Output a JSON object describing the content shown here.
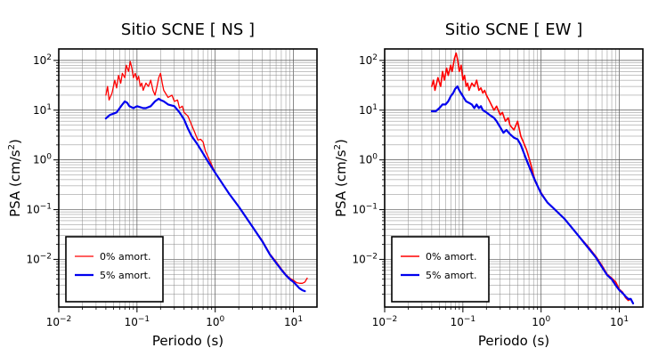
{
  "chart_data": [
    {
      "type": "line",
      "title": "Sitio SCNE [ NS ]",
      "xlabel": "Periodo (s)",
      "ylabel_main": "PSA (cm/s",
      "ylabel_sup": "2",
      "ylabel_close": ")",
      "xscale": "log",
      "yscale": "log",
      "xlim": [
        0.01,
        20
      ],
      "ylim": [
        0.0011,
        170
      ],
      "grid": true,
      "legend_position": "bottom-left",
      "x_ticks": [
        {
          "value": 0.01,
          "base": "10",
          "exp": "−2"
        },
        {
          "value": 0.1,
          "base": "10",
          "exp": "−1"
        },
        {
          "value": 1,
          "base": "10",
          "exp": "0"
        },
        {
          "value": 10,
          "base": "10",
          "exp": "1"
        }
      ],
      "y_ticks": [
        {
          "value": 0.01,
          "base": "10",
          "exp": "−2"
        },
        {
          "value": 0.1,
          "base": "10",
          "exp": "−1"
        },
        {
          "value": 1,
          "base": "10",
          "exp": "0"
        },
        {
          "value": 10,
          "base": "10",
          "exp": "1"
        },
        {
          "value": 100,
          "base": "10",
          "exp": "2"
        }
      ],
      "series": [
        {
          "name": "0% amort.",
          "color": "#ff0000",
          "width": 1.3,
          "points": [
            [
              0.04,
              20
            ],
            [
              0.042,
              30
            ],
            [
              0.044,
              16
            ],
            [
              0.048,
              22
            ],
            [
              0.052,
              40
            ],
            [
              0.055,
              28
            ],
            [
              0.058,
              50
            ],
            [
              0.062,
              35
            ],
            [
              0.065,
              55
            ],
            [
              0.07,
              45
            ],
            [
              0.073,
              80
            ],
            [
              0.078,
              60
            ],
            [
              0.082,
              95
            ],
            [
              0.086,
              70
            ],
            [
              0.09,
              45
            ],
            [
              0.095,
              55
            ],
            [
              0.1,
              40
            ],
            [
              0.105,
              48
            ],
            [
              0.11,
              30
            ],
            [
              0.115,
              35
            ],
            [
              0.12,
              25
            ],
            [
              0.13,
              35
            ],
            [
              0.14,
              30
            ],
            [
              0.15,
              40
            ],
            [
              0.16,
              25
            ],
            [
              0.17,
              20
            ],
            [
              0.18,
              30
            ],
            [
              0.19,
              45
            ],
            [
              0.2,
              55
            ],
            [
              0.21,
              35
            ],
            [
              0.22,
              25
            ],
            [
              0.25,
              18
            ],
            [
              0.28,
              20
            ],
            [
              0.3,
              15
            ],
            [
              0.33,
              16
            ],
            [
              0.35,
              11
            ],
            [
              0.38,
              12
            ],
            [
              0.4,
              9
            ],
            [
              0.45,
              7.5
            ],
            [
              0.5,
              5
            ],
            [
              0.55,
              3.5
            ],
            [
              0.6,
              2.5
            ],
            [
              0.65,
              2.6
            ],
            [
              0.7,
              2.3
            ],
            [
              0.75,
              1.5
            ],
            [
              0.8,
              1.2
            ],
            [
              1.0,
              0.55
            ],
            [
              1.5,
              0.21
            ],
            [
              2,
              0.115
            ],
            [
              3,
              0.045
            ],
            [
              4,
              0.024
            ],
            [
              5,
              0.013
            ],
            [
              6,
              0.009
            ],
            [
              7,
              0.0065
            ],
            [
              8,
              0.005
            ],
            [
              9,
              0.0042
            ],
            [
              10,
              0.0038
            ],
            [
              11,
              0.0034
            ],
            [
              12,
              0.0033
            ],
            [
              13,
              0.0033
            ],
            [
              14,
              0.0035
            ],
            [
              15,
              0.0042
            ]
          ]
        },
        {
          "name": "5% amort.",
          "color": "#0000ee",
          "width": 2.2,
          "points": [
            [
              0.04,
              6.8
            ],
            [
              0.045,
              8
            ],
            [
              0.05,
              8.5
            ],
            [
              0.055,
              9
            ],
            [
              0.06,
              11
            ],
            [
              0.065,
              13
            ],
            [
              0.07,
              15
            ],
            [
              0.075,
              14
            ],
            [
              0.08,
              12
            ],
            [
              0.09,
              11
            ],
            [
              0.1,
              12
            ],
            [
              0.11,
              11.5
            ],
            [
              0.12,
              11
            ],
            [
              0.13,
              11
            ],
            [
              0.15,
              12
            ],
            [
              0.17,
              15
            ],
            [
              0.19,
              17
            ],
            [
              0.2,
              16
            ],
            [
              0.22,
              15
            ],
            [
              0.25,
              13
            ],
            [
              0.3,
              12
            ],
            [
              0.35,
              9
            ],
            [
              0.4,
              6.5
            ],
            [
              0.45,
              4.2
            ],
            [
              0.5,
              3
            ],
            [
              0.6,
              2
            ],
            [
              0.7,
              1.35
            ],
            [
              0.8,
              0.95
            ],
            [
              1.0,
              0.55
            ],
            [
              1.5,
              0.21
            ],
            [
              2,
              0.115
            ],
            [
              3,
              0.045
            ],
            [
              4,
              0.023
            ],
            [
              5,
              0.0125
            ],
            [
              6,
              0.0085
            ],
            [
              7,
              0.0062
            ],
            [
              8,
              0.0048
            ],
            [
              9,
              0.004
            ],
            [
              10,
              0.0035
            ],
            [
              11,
              0.003
            ],
            [
              12,
              0.0026
            ],
            [
              13,
              0.0024
            ],
            [
              14,
              0.0023
            ]
          ]
        }
      ]
    },
    {
      "type": "line",
      "title": "Sitio SCNE [ EW ]",
      "xlabel": "Periodo (s)",
      "ylabel_main": "PSA (cm/s",
      "ylabel_sup": "2",
      "ylabel_close": ")",
      "xscale": "log",
      "yscale": "log",
      "xlim": [
        0.01,
        20
      ],
      "ylim": [
        0.0011,
        170
      ],
      "grid": true,
      "legend_position": "bottom-left",
      "x_ticks": [
        {
          "value": 0.01,
          "base": "10",
          "exp": "−2"
        },
        {
          "value": 0.1,
          "base": "10",
          "exp": "−1"
        },
        {
          "value": 1,
          "base": "10",
          "exp": "0"
        },
        {
          "value": 10,
          "base": "10",
          "exp": "1"
        }
      ],
      "y_ticks": [
        {
          "value": 0.01,
          "base": "10",
          "exp": "−2"
        },
        {
          "value": 0.1,
          "base": "10",
          "exp": "−1"
        },
        {
          "value": 1,
          "base": "10",
          "exp": "0"
        },
        {
          "value": 10,
          "base": "10",
          "exp": "1"
        },
        {
          "value": 100,
          "base": "10",
          "exp": "2"
        }
      ],
      "series": [
        {
          "name": "0% amort.",
          "color": "#ff0000",
          "width": 1.6,
          "points": [
            [
              0.04,
              30
            ],
            [
              0.042,
              40
            ],
            [
              0.044,
              25
            ],
            [
              0.048,
              45
            ],
            [
              0.052,
              30
            ],
            [
              0.055,
              60
            ],
            [
              0.058,
              40
            ],
            [
              0.062,
              70
            ],
            [
              0.065,
              50
            ],
            [
              0.07,
              80
            ],
            [
              0.073,
              60
            ],
            [
              0.078,
              110
            ],
            [
              0.082,
              140
            ],
            [
              0.086,
              100
            ],
            [
              0.09,
              60
            ],
            [
              0.095,
              80
            ],
            [
              0.1,
              40
            ],
            [
              0.105,
              50
            ],
            [
              0.11,
              30
            ],
            [
              0.115,
              35
            ],
            [
              0.12,
              25
            ],
            [
              0.13,
              35
            ],
            [
              0.14,
              30
            ],
            [
              0.15,
              40
            ],
            [
              0.16,
              25
            ],
            [
              0.17,
              28
            ],
            [
              0.18,
              22
            ],
            [
              0.19,
              25
            ],
            [
              0.2,
              20
            ],
            [
              0.22,
              15
            ],
            [
              0.25,
              10
            ],
            [
              0.27,
              12
            ],
            [
              0.3,
              8
            ],
            [
              0.32,
              9
            ],
            [
              0.35,
              6
            ],
            [
              0.38,
              7
            ],
            [
              0.4,
              5
            ],
            [
              0.45,
              4
            ],
            [
              0.5,
              6
            ],
            [
              0.55,
              3
            ],
            [
              0.6,
              2.2
            ],
            [
              0.65,
              1.6
            ],
            [
              0.7,
              1.1
            ],
            [
              0.75,
              0.75
            ],
            [
              0.8,
              0.5
            ],
            [
              0.85,
              0.35
            ],
            [
              0.9,
              0.3
            ],
            [
              1.0,
              0.22
            ],
            [
              1.2,
              0.14
            ],
            [
              1.5,
              0.1
            ],
            [
              2,
              0.065
            ],
            [
              3,
              0.03
            ],
            [
              4,
              0.018
            ],
            [
              5,
              0.0115
            ],
            [
              6,
              0.0075
            ],
            [
              7,
              0.005
            ],
            [
              8,
              0.0042
            ],
            [
              9,
              0.0035
            ],
            [
              10,
              0.0025
            ],
            [
              11,
              0.0022
            ],
            [
              12,
              0.0017
            ],
            [
              13,
              0.0015
            ],
            [
              14,
              0.0016
            ],
            [
              15,
              0.0013
            ]
          ]
        },
        {
          "name": "5% amort.",
          "color": "#0000ee",
          "width": 2.2,
          "points": [
            [
              0.04,
              9.5
            ],
            [
              0.045,
              9.5
            ],
            [
              0.05,
              11
            ],
            [
              0.055,
              13
            ],
            [
              0.06,
              13
            ],
            [
              0.065,
              15
            ],
            [
              0.07,
              19
            ],
            [
              0.075,
              22
            ],
            [
              0.08,
              27
            ],
            [
              0.085,
              30
            ],
            [
              0.09,
              25
            ],
            [
              0.1,
              19
            ],
            [
              0.11,
              15
            ],
            [
              0.12,
              14
            ],
            [
              0.13,
              13
            ],
            [
              0.14,
              11
            ],
            [
              0.15,
              13
            ],
            [
              0.16,
              11
            ],
            [
              0.17,
              12
            ],
            [
              0.18,
              10
            ],
            [
              0.2,
              9
            ],
            [
              0.22,
              8
            ],
            [
              0.25,
              7
            ],
            [
              0.27,
              6
            ],
            [
              0.3,
              4.5
            ],
            [
              0.33,
              3.5
            ],
            [
              0.36,
              4
            ],
            [
              0.4,
              3.3
            ],
            [
              0.45,
              2.8
            ],
            [
              0.5,
              2.6
            ],
            [
              0.55,
              2
            ],
            [
              0.6,
              1.4
            ],
            [
              0.65,
              1
            ],
            [
              0.7,
              0.75
            ],
            [
              0.8,
              0.45
            ],
            [
              0.9,
              0.3
            ],
            [
              1.0,
              0.21
            ],
            [
              1.2,
              0.14
            ],
            [
              1.5,
              0.1
            ],
            [
              2,
              0.065
            ],
            [
              3,
              0.03
            ],
            [
              4,
              0.017
            ],
            [
              5,
              0.011
            ],
            [
              6,
              0.007
            ],
            [
              7,
              0.0048
            ],
            [
              8,
              0.004
            ],
            [
              9,
              0.003
            ],
            [
              10,
              0.0024
            ],
            [
              11,
              0.0021
            ],
            [
              12,
              0.0018
            ],
            [
              13,
              0.0016
            ],
            [
              14,
              0.0016
            ],
            [
              15,
              0.0013
            ]
          ]
        }
      ]
    }
  ]
}
